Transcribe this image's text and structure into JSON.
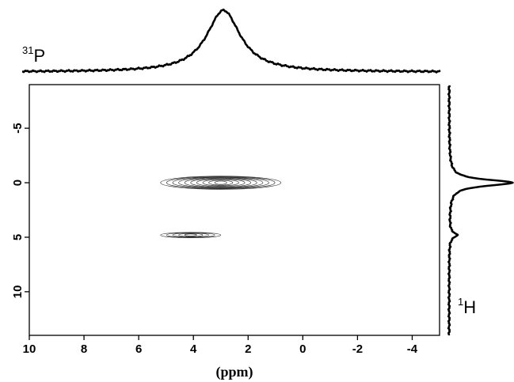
{
  "chart_data": {
    "type": "contour",
    "xlabel": "(ppm)",
    "ylabel": "",
    "xlim": [
      10,
      -5
    ],
    "ylim": [
      -9,
      14
    ],
    "x_ticks": [
      10,
      8,
      6,
      4,
      2,
      0,
      -2,
      -4
    ],
    "y_ticks": [
      -5,
      0,
      5,
      10
    ],
    "top_projection": {
      "nucleus_mass": "31",
      "nucleus_symbol": "P",
      "peaks": [
        {
          "center": 2.9,
          "width": 0.75,
          "height": 1.0
        }
      ]
    },
    "right_projection": {
      "nucleus_mass": "1",
      "nucleus_symbol": "H",
      "peaks": [
        {
          "center": 0.0,
          "width": 0.35,
          "height": 1.0
        },
        {
          "center": 4.8,
          "width": 0.3,
          "height": 0.12
        }
      ]
    },
    "contours": [
      {
        "x_center": 3.0,
        "y_center": 0.0,
        "x_halfwidth": 2.2,
        "y_halfwidth": 0.6,
        "levels": 10
      },
      {
        "x_center": 4.1,
        "y_center": 4.8,
        "x_halfwidth": 1.1,
        "y_halfwidth": 0.25,
        "levels": 5
      }
    ]
  }
}
